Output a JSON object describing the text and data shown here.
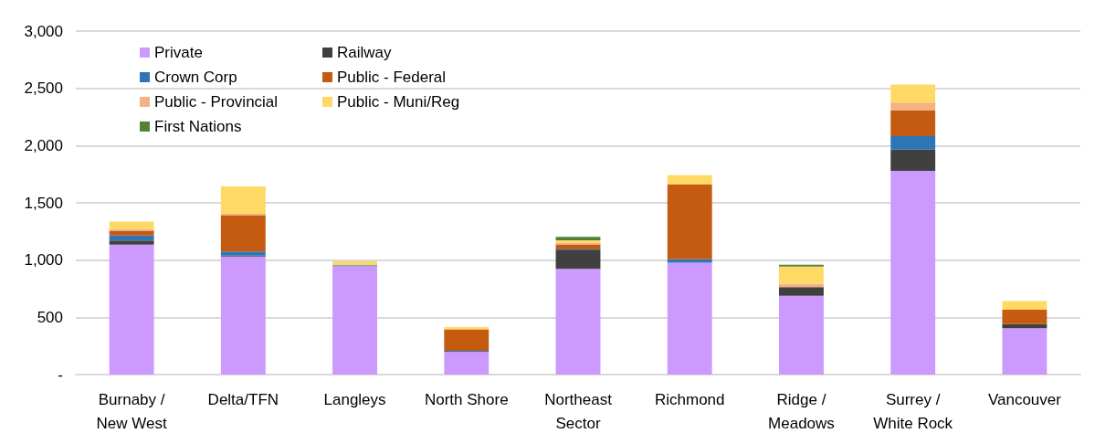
{
  "chart_data": {
    "type": "bar",
    "stacked": true,
    "categories": [
      "Burnaby /\nNew West",
      "Delta/TFN",
      "Langleys",
      "North Shore",
      "Northeast\nSector",
      "Richmond",
      "Ridge /\nMeadows",
      "Surrey /\nWhite Rock",
      "Vancouver"
    ],
    "series": [
      {
        "name": "Private",
        "color": "#cc99ff",
        "values": [
          1134,
          1031,
          947,
          198,
          924,
          977,
          689,
          1779,
          405
        ]
      },
      {
        "name": "Railway",
        "color": "#404040",
        "values": [
          36,
          9,
          null,
          null,
          162,
          null,
          74,
          186,
          36
        ]
      },
      {
        "name": "Crown Corp",
        "color": "#2e75b6",
        "values": [
          44,
          36,
          8,
          10,
          8,
          31,
          null,
          118,
          null
        ]
      },
      {
        "name": "Public - Federal",
        "color": "#c55a11",
        "values": [
          42,
          316,
          null,
          186,
          43,
          651,
          null,
          222,
          128
        ]
      },
      {
        "name": "Public - Provincial",
        "color": "#f4b183",
        "values": [
          16,
          13,
          null,
          null,
          16,
          null,
          30,
          71,
          null
        ]
      },
      {
        "name": "Public - Muni/Reg",
        "color": "#ffd966",
        "values": [
          64,
          239,
          35,
          20,
          20,
          82,
          151,
          158,
          74
        ]
      },
      {
        "name": "First Nations",
        "color": "#548235",
        "values": [
          null,
          null,
          null,
          null,
          30,
          null,
          16,
          null,
          null
        ]
      }
    ],
    "ylim": [
      0,
      3000
    ],
    "yticks": [
      {
        "value": 0,
        "label": "-"
      },
      {
        "value": 500,
        "label": "500"
      },
      {
        "value": 1000,
        "label": "1,000"
      },
      {
        "value": 1500,
        "label": "1,500"
      },
      {
        "value": 2000,
        "label": "2,000"
      },
      {
        "value": 2500,
        "label": "2,500"
      },
      {
        "value": 3000,
        "label": "3,000"
      }
    ],
    "grid": "y",
    "legend": "top left"
  }
}
